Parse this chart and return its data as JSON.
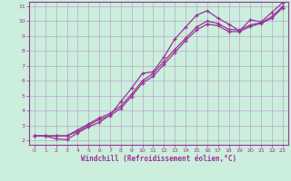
{
  "title": "",
  "xlabel": "Windchill (Refroidissement éolien,°C)",
  "ylabel": "",
  "bg_color": "#cceedd",
  "grid_color": "#b8a8c8",
  "line_color": "#993399",
  "text_color": "#993399",
  "xlim": [
    -0.5,
    23.5
  ],
  "ylim": [
    1.7,
    11.3
  ],
  "xticks": [
    0,
    1,
    2,
    3,
    4,
    5,
    6,
    7,
    8,
    9,
    10,
    11,
    12,
    13,
    14,
    15,
    16,
    17,
    18,
    19,
    20,
    21,
    22,
    23
  ],
  "yticks": [
    2,
    3,
    4,
    5,
    6,
    7,
    8,
    9,
    10,
    11
  ],
  "series1_x": [
    0,
    1,
    2,
    3,
    4,
    5,
    6,
    7,
    8,
    9,
    10,
    11,
    12,
    13,
    14,
    15,
    16,
    17,
    18,
    19,
    20,
    21,
    22,
    23
  ],
  "series1_y": [
    2.3,
    2.3,
    2.1,
    2.05,
    2.5,
    2.9,
    3.2,
    3.7,
    4.6,
    5.5,
    6.5,
    6.6,
    7.6,
    8.8,
    9.6,
    10.4,
    10.7,
    10.2,
    9.8,
    9.35,
    10.1,
    9.95,
    10.6,
    11.25
  ],
  "series2_x": [
    0,
    1,
    2,
    3,
    4,
    5,
    6,
    7,
    8,
    9,
    10,
    11,
    12,
    13,
    14,
    15,
    16,
    17,
    18,
    19,
    20,
    21,
    22,
    23
  ],
  "series2_y": [
    2.3,
    2.3,
    2.3,
    2.3,
    2.7,
    3.1,
    3.5,
    3.8,
    4.3,
    5.1,
    6.0,
    6.5,
    7.3,
    8.1,
    8.85,
    9.6,
    10.0,
    9.85,
    9.45,
    9.4,
    9.75,
    9.9,
    10.3,
    11.0
  ],
  "series3_x": [
    0,
    1,
    2,
    3,
    4,
    5,
    6,
    7,
    8,
    9,
    10,
    11,
    12,
    13,
    14,
    15,
    16,
    17,
    18,
    19,
    20,
    21,
    22,
    23
  ],
  "series3_y": [
    2.3,
    2.3,
    2.3,
    2.3,
    2.6,
    3.0,
    3.4,
    3.65,
    4.15,
    4.95,
    5.85,
    6.3,
    7.1,
    7.9,
    8.7,
    9.4,
    9.8,
    9.7,
    9.3,
    9.3,
    9.65,
    9.85,
    10.2,
    10.9
  ]
}
